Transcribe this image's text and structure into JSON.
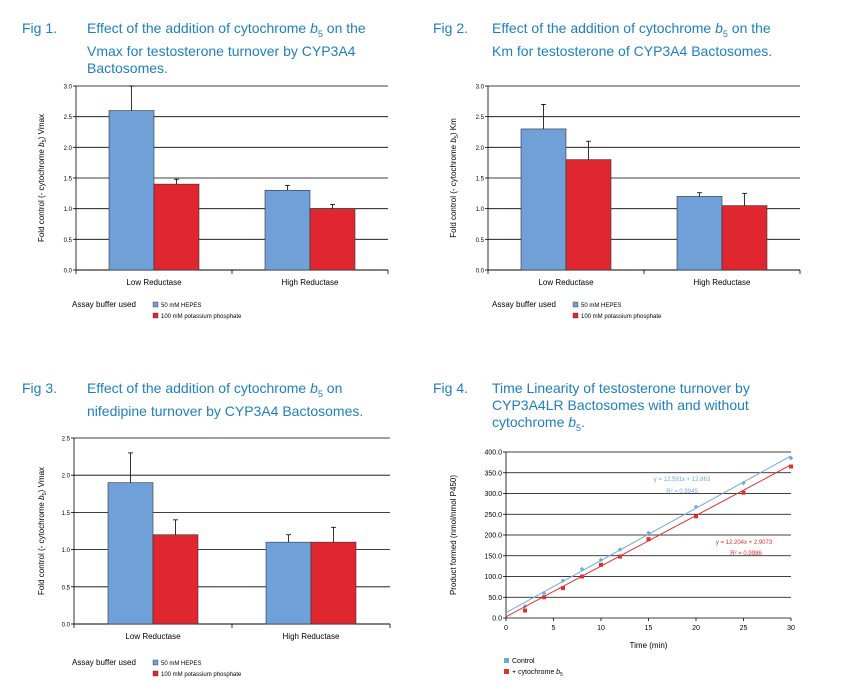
{
  "colors": {
    "title": "#1e7fbf",
    "hepes": "#6fa0d8",
    "phosphate": "#e0272f",
    "control_line": "#6fa8dc",
    "b5_line": "#e03030"
  },
  "figures": [
    {
      "num": "Fig 1.",
      "title_lines": [
        "Effect of the addition of cytochrome b5 on the",
        "Vmax for testosterone turnover by CYP3A4",
        "Bactosomes."
      ],
      "ylabel": "Fold control (- cytochrome b5) Vmax",
      "legend_title": "Assay buffer used",
      "legend": [
        "50 mM HEPES",
        "100 mM potassium phosphate"
      ]
    },
    {
      "num": "Fig 2.",
      "title_lines": [
        "Effect of the addition of cytochrome b5 on the",
        "Km for testosterone of CYP3A4 Bactosomes."
      ],
      "ylabel": "Fold control (- cytochrome b5) Km",
      "legend_title": "Assay buffer used",
      "legend": [
        "50 mM HEPES",
        "100 mM potassium phosphate"
      ]
    },
    {
      "num": "Fig 3.",
      "title_lines": [
        "Effect of the addition of cytochrome b5 on",
        "nifedipine turnover by CYP3A4 Bactosomes."
      ],
      "ylabel": "Fold control (- cytochrome b5) Vmax",
      "legend_title": "Assay buffer used",
      "legend": [
        "50 mM HEPES",
        "100 mM potassium phosphate"
      ]
    },
    {
      "num": "Fig 4.",
      "title_lines": [
        "Time Linearity of testosterone turnover by",
        "CYP3A4LR Bactosomes with and without",
        "cytochrome b5."
      ],
      "ylabel": "Product formed (nmol/nmol P450)",
      "xlabel": "Time (min)",
      "legend": [
        "Control",
        "+ cytochrome b5"
      ],
      "eq_control": [
        "y = 12.591x + 12.863",
        "R² = 0.9945"
      ],
      "eq_b5": [
        "y = 12.204x + 2.9073",
        "R² = 0.9986"
      ]
    }
  ],
  "chart_data": [
    {
      "type": "bar",
      "title": "Effect of the addition of cytochrome b5 on the Vmax for testosterone turnover by CYP3A4 Bactosomes.",
      "categories": [
        "Low Reductase",
        "High Reductase"
      ],
      "series": [
        {
          "name": "50 mM HEPES",
          "values": [
            2.6,
            1.3
          ],
          "errors": [
            0.4,
            0.08
          ]
        },
        {
          "name": "100 mM potassium phosphate",
          "values": [
            1.4,
            1.0
          ],
          "errors": [
            0.08,
            0.07
          ]
        }
      ],
      "ylabel": "Fold control (- cytochrome b5) Vmax",
      "ylim": [
        0,
        3.0
      ],
      "yticks": [
        "0.0",
        "0.5",
        "1.0",
        "1.5",
        "2.0",
        "2.5",
        "3.0"
      ]
    },
    {
      "type": "bar",
      "title": "Effect of the addition of cytochrome b5 on the Km for testosterone of CYP3A4 Bactosomes.",
      "categories": [
        "Low Reductase",
        "High Reductase"
      ],
      "series": [
        {
          "name": "50 mM HEPES",
          "values": [
            2.3,
            1.2
          ],
          "errors": [
            0.4,
            0.06
          ]
        },
        {
          "name": "100 mM potassium phosphate",
          "values": [
            1.8,
            1.05
          ],
          "errors": [
            0.3,
            0.2
          ]
        }
      ],
      "ylabel": "Fold control (- cytochrome b5) Km",
      "ylim": [
        0,
        3.0
      ],
      "yticks": [
        "0.0",
        "0.5",
        "1.0",
        "1.5",
        "2.0",
        "2.5",
        "3.0"
      ]
    },
    {
      "type": "bar",
      "title": "Effect of the addition of cytochrome b5 on nifedipine turnover by CYP3A4 Bactosomes.",
      "categories": [
        "Low Reductase",
        "High Reductase"
      ],
      "series": [
        {
          "name": "50 mM HEPES",
          "values": [
            1.9,
            1.1
          ],
          "errors": [
            0.4,
            0.1
          ]
        },
        {
          "name": "100 mM potassium phosphate",
          "values": [
            1.2,
            1.1
          ],
          "errors": [
            0.2,
            0.2
          ]
        }
      ],
      "ylabel": "Fold control (- cytochrome b5) Vmax",
      "ylim": [
        0,
        2.5
      ],
      "yticks": [
        "0.0",
        "0.5",
        "1.0",
        "1.5",
        "2.0",
        "2.5"
      ]
    },
    {
      "type": "scatter",
      "title": "Time Linearity of testosterone turnover by CYP3A4LR Bactosomes with and without cytochrome b5.",
      "xlabel": "Time (min)",
      "ylabel": "Product formed (nmol/nmol P450)",
      "xlim": [
        0,
        30
      ],
      "ylim": [
        0,
        400
      ],
      "xticks": [
        "0",
        "5",
        "10",
        "15",
        "20",
        "25",
        "30"
      ],
      "yticks": [
        "0.0",
        "50.0",
        "100.0",
        "150.0",
        "200.0",
        "250.0",
        "300.0",
        "350.0",
        "400.0"
      ],
      "series": [
        {
          "name": "Control",
          "x": [
            2,
            4,
            6,
            8,
            10,
            12,
            15,
            20,
            25,
            30
          ],
          "y": [
            28,
            60,
            90,
            118,
            140,
            165,
            205,
            268,
            325,
            385
          ],
          "trend": {
            "slope": 12.591,
            "intercept": 12.863
          }
        },
        {
          "name": "+ cytochrome b5",
          "x": [
            2,
            4,
            6,
            8,
            10,
            12,
            15,
            20,
            25,
            30
          ],
          "y": [
            18,
            50,
            72,
            100,
            128,
            148,
            190,
            245,
            302,
            365
          ],
          "trend": {
            "slope": 12.204,
            "intercept": 2.9073
          }
        }
      ]
    }
  ]
}
